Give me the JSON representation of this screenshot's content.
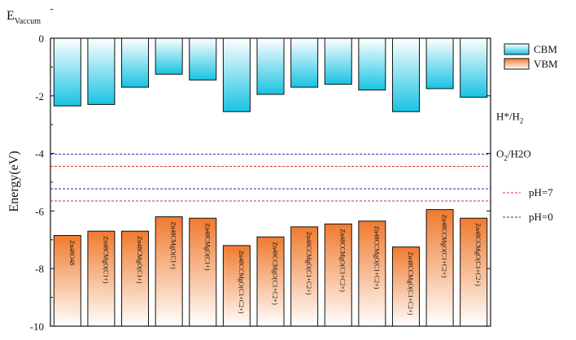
{
  "chart_data": {
    "type": "bar",
    "title": "",
    "corner_label": "E",
    "corner_label_sub": "Vaccum",
    "ylabel": "Energy(eV)",
    "ylim": [
      -10,
      0
    ],
    "yticks": [
      0,
      -2,
      -4,
      -6,
      -8,
      -10
    ],
    "categories": [
      "Zn48O48",
      "Zn48CMgO(C1+)",
      "Zn48CMgO(C1+)",
      "Zn48CMgO(C1+)",
      "Zn48CMgO(C1+)",
      "Zn48CCMgO(C1+C2+)",
      "Zn48CCMgO(C1+C2+)",
      "Zn48CCMgO(C1+C2+)",
      "Zn48CCMgO(C1+C2+)",
      "Zn48CCMgO(C1+C2+)",
      "Zn48CCMgO(C1+C2+)",
      "Zn48CCMgO(C1+C2+)",
      "Zn48CCMgO(C1+C2+)"
    ],
    "series": [
      {
        "name": "CBM",
        "values": [
          -2.35,
          -2.3,
          -1.7,
          -1.25,
          -1.45,
          -2.55,
          -1.95,
          -1.7,
          -1.6,
          -1.8,
          -2.55,
          -1.75,
          -2.05
        ],
        "color_top": "#ffffff",
        "color_bottom": "#18c3e3"
      },
      {
        "name": "VBM",
        "values": [
          -6.85,
          -6.7,
          -6.7,
          -6.2,
          -6.25,
          -7.2,
          -6.9,
          -6.55,
          -6.45,
          -6.35,
          -7.25,
          -5.95,
          -6.25
        ],
        "color_top": "#f07a2e",
        "color_bottom": "#ffffff"
      }
    ],
    "reference_levels": [
      {
        "label": "H*/H2",
        "value": -2.7,
        "color": "#1f2bb5",
        "label_main": "H*/H",
        "label_sub": "2"
      },
      {
        "label": "O2/H2O",
        "value": -4.03,
        "color": "#1f2bb5",
        "label_main": "O",
        "label_sub": "2",
        "label_tail": "/H2O",
        "line": true
      },
      {
        "value": -4.45,
        "color": "#d93030",
        "line": true
      },
      {
        "value": -5.23,
        "color": "#1f2bb5",
        "line": true
      },
      {
        "value": -5.65,
        "color": "#d93030",
        "line": true
      }
    ],
    "legend_items": [
      {
        "label": "pH=7",
        "color": "#d93030"
      },
      {
        "label": "pH=0",
        "color": "#1f2bb5"
      }
    ],
    "legend_position": "top-right"
  }
}
